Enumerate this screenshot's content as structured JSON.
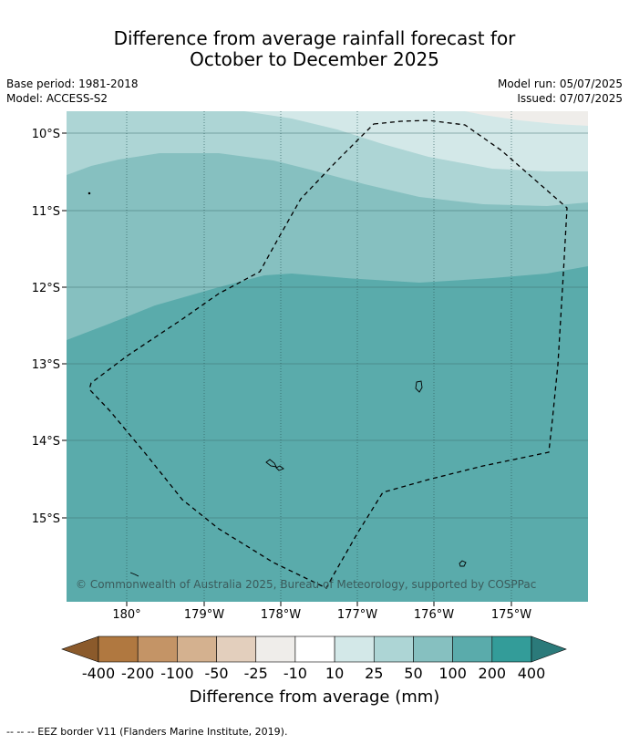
{
  "title": {
    "line1": "Difference from average rainfall forecast for",
    "line2": "October to December 2025"
  },
  "meta_left": {
    "base_period": "Base period: 1981-2018",
    "model": "Model: ACCESS-S2"
  },
  "meta_right": {
    "model_run": "Model run: 05/07/2025",
    "issued": "Issued: 07/07/2025"
  },
  "map": {
    "lat_labels": [
      "10°S",
      "11°S",
      "12°S",
      "13°S",
      "14°S",
      "15°S"
    ],
    "lon_labels": [
      "180°",
      "179°W",
      "178°W",
      "177°W",
      "176°W",
      "175°W"
    ],
    "copyright": "© Commonwealth of Australia 2025, Bureau of Meteorology, supported by COSPPac",
    "colors": {
      "land_outline": "#000000",
      "eez_border": "#000000"
    }
  },
  "colorbar": {
    "labels": [
      "-400",
      "-200",
      "-100",
      "-50",
      "-25",
      "-10",
      "10",
      "25",
      "50",
      "100",
      "200",
      "400"
    ],
    "colors": [
      "#8b5a2b",
      "#b07840",
      "#c49466",
      "#d4b18f",
      "#e3cfbd",
      "#efedea",
      "#ffffff",
      "#d3e8e8",
      "#add5d5",
      "#86c0c0",
      "#5aabab",
      "#339c99",
      "#2b7a7a"
    ],
    "title": "Difference from average (mm)"
  },
  "footnote": "--  --  -- EEZ border V11 (Flanders Marine Institute, 2019)."
}
